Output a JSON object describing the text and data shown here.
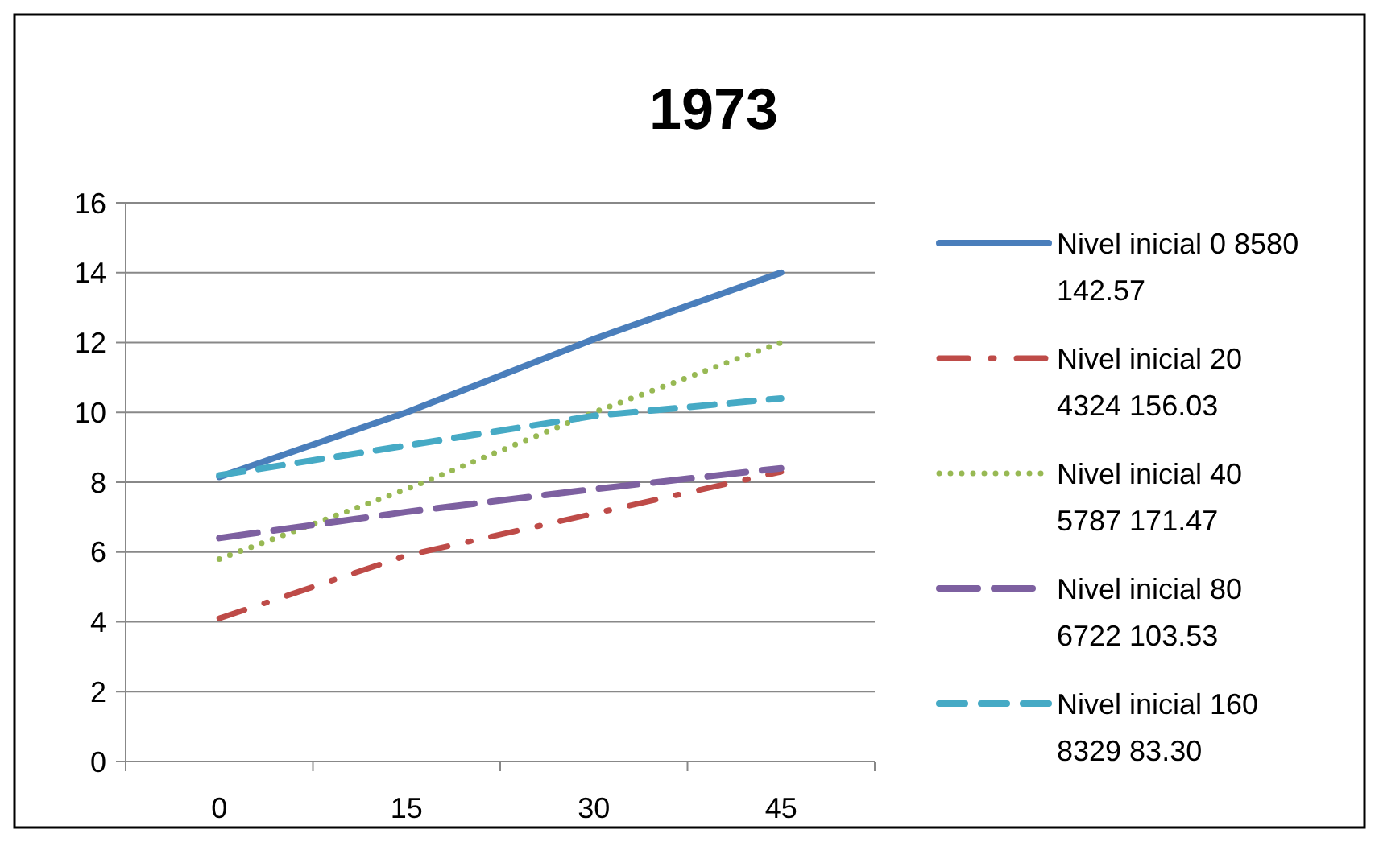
{
  "chart_data": {
    "type": "line",
    "title": "1973",
    "categories": [
      "0",
      "15",
      "30",
      "45"
    ],
    "ylim": [
      0,
      16
    ],
    "yticks": [
      0,
      2,
      4,
      6,
      8,
      10,
      12,
      14,
      16
    ],
    "grid": "y",
    "legend": "right",
    "marker": "none",
    "series": [
      {
        "name": "Nivel inicial 0 8580 142.57",
        "color": "#4a7ebb",
        "line_style": "solid",
        "values": [
          8.15,
          10.0,
          12.1,
          14.0
        ]
      },
      {
        "name": "Nivel inicial 20 4324 156.03",
        "color": "#be4b48",
        "line_style": "dash-dot",
        "values": [
          4.1,
          5.9,
          7.1,
          8.3
        ]
      },
      {
        "name": "Nivel inicial 40 5787 171.47",
        "color": "#98b954",
        "line_style": "dotted",
        "values": [
          5.8,
          7.8,
          10.0,
          12.0
        ]
      },
      {
        "name": "Nivel inicial 80 6722 103.53",
        "color": "#7d60a0",
        "line_style": "long-dash",
        "values": [
          6.4,
          7.15,
          7.8,
          8.4
        ]
      },
      {
        "name": "Nivel inicial 160 8329 83.30",
        "color": "#46aac5",
        "line_style": "dashed",
        "values": [
          8.2,
          9.05,
          9.9,
          10.4
        ]
      }
    ]
  }
}
